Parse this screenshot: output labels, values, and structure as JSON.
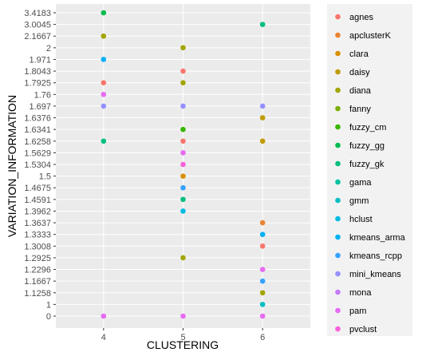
{
  "chart_data": {
    "type": "scatter",
    "title": "",
    "xlabel": "CLUSTERING",
    "ylabel": "VARIATION_INFORMATION",
    "x_ticks": [
      "4",
      "5",
      "6"
    ],
    "y_ticks": [
      "0",
      "1",
      "1.1258",
      "1.1667",
      "1.2296",
      "1.2925",
      "1.3008",
      "1.3333",
      "1.3637",
      "1.3962",
      "1.4591",
      "1.4675",
      "1.5",
      "1.5304",
      "1.5629",
      "1.6258",
      "1.6341",
      "1.6376",
      "1.697",
      "1.76",
      "1.7925",
      "1.8043",
      "1.971",
      "2",
      "2.1667",
      "3.0045",
      "3.4183"
    ],
    "grid": true,
    "legend_position": "right",
    "legend": [
      {
        "name": "agnes",
        "color": "#F8766D"
      },
      {
        "name": "apclusterK",
        "color": "#EA8331"
      },
      {
        "name": "clara",
        "color": "#D89000"
      },
      {
        "name": "daisy",
        "color": "#C09B00"
      },
      {
        "name": "diana",
        "color": "#A3A500"
      },
      {
        "name": "fanny",
        "color": "#7CAE00"
      },
      {
        "name": "fuzzy_cm",
        "color": "#39B600"
      },
      {
        "name": "fuzzy_gg",
        "color": "#00BB4E"
      },
      {
        "name": "fuzzy_gk",
        "color": "#00BF7D"
      },
      {
        "name": "gama",
        "color": "#00C1A3"
      },
      {
        "name": "gmm",
        "color": "#00BFC4"
      },
      {
        "name": "hclust",
        "color": "#00BAE0"
      },
      {
        "name": "kmeans_arma",
        "color": "#00B0F6"
      },
      {
        "name": "kmeans_rcpp",
        "color": "#35A2FF"
      },
      {
        "name": "mini_kmeans",
        "color": "#9590FF"
      },
      {
        "name": "mona",
        "color": "#C77CFF"
      },
      {
        "name": "pam",
        "color": "#E76BF3"
      },
      {
        "name": "pvclust",
        "color": "#FA62DB"
      }
    ],
    "points": [
      {
        "x": "4",
        "y": "3.4183",
        "color": "#00BB4E"
      },
      {
        "x": "4",
        "y": "2.1667",
        "color": "#A3A500"
      },
      {
        "x": "4",
        "y": "1.971",
        "color": "#00B0F6"
      },
      {
        "x": "4",
        "y": "1.7925",
        "color": "#F8766D"
      },
      {
        "x": "4",
        "y": "1.76",
        "color": "#E76BF3"
      },
      {
        "x": "4",
        "y": "1.697",
        "color": "#9590FF"
      },
      {
        "x": "4",
        "y": "1.6258",
        "color": "#00BF7D"
      },
      {
        "x": "4",
        "y": "0",
        "color": "#E76BF3"
      },
      {
        "x": "5",
        "y": "2",
        "color": "#A3A500"
      },
      {
        "x": "5",
        "y": "1.8043",
        "color": "#F8766D"
      },
      {
        "x": "5",
        "y": "1.7925",
        "color": "#A3A500"
      },
      {
        "x": "5",
        "y": "1.697",
        "color": "#9590FF"
      },
      {
        "x": "5",
        "y": "1.6341",
        "color": "#39B600"
      },
      {
        "x": "5",
        "y": "1.6258",
        "color": "#F8766D"
      },
      {
        "x": "5",
        "y": "1.5629",
        "color": "#E76BF3"
      },
      {
        "x": "5",
        "y": "1.5304",
        "color": "#FA62DB"
      },
      {
        "x": "5",
        "y": "1.5",
        "color": "#D89000"
      },
      {
        "x": "5",
        "y": "1.4675",
        "color": "#35A2FF"
      },
      {
        "x": "5",
        "y": "1.4591",
        "color": "#00BF7D"
      },
      {
        "x": "5",
        "y": "1.3962",
        "color": "#00BAE0"
      },
      {
        "x": "5",
        "y": "1.2925",
        "color": "#A3A500"
      },
      {
        "x": "5",
        "y": "0",
        "color": "#E76BF3"
      },
      {
        "x": "6",
        "y": "3.0045",
        "color": "#00BF7D"
      },
      {
        "x": "6",
        "y": "1.697",
        "color": "#9590FF"
      },
      {
        "x": "6",
        "y": "1.6376",
        "color": "#C09B00"
      },
      {
        "x": "6",
        "y": "1.6258",
        "color": "#C09B00"
      },
      {
        "x": "6",
        "y": "1.3637",
        "color": "#EA8331"
      },
      {
        "x": "6",
        "y": "1.3333",
        "color": "#00B0F6"
      },
      {
        "x": "6",
        "y": "1.3008",
        "color": "#F8766D"
      },
      {
        "x": "6",
        "y": "1.2296",
        "color": "#E76BF3"
      },
      {
        "x": "6",
        "y": "1.1667",
        "color": "#35A2FF"
      },
      {
        "x": "6",
        "y": "1.1258",
        "color": "#A3A500"
      },
      {
        "x": "6",
        "y": "1",
        "color": "#00BFC4"
      },
      {
        "x": "6",
        "y": "0",
        "color": "#E76BF3"
      }
    ]
  }
}
